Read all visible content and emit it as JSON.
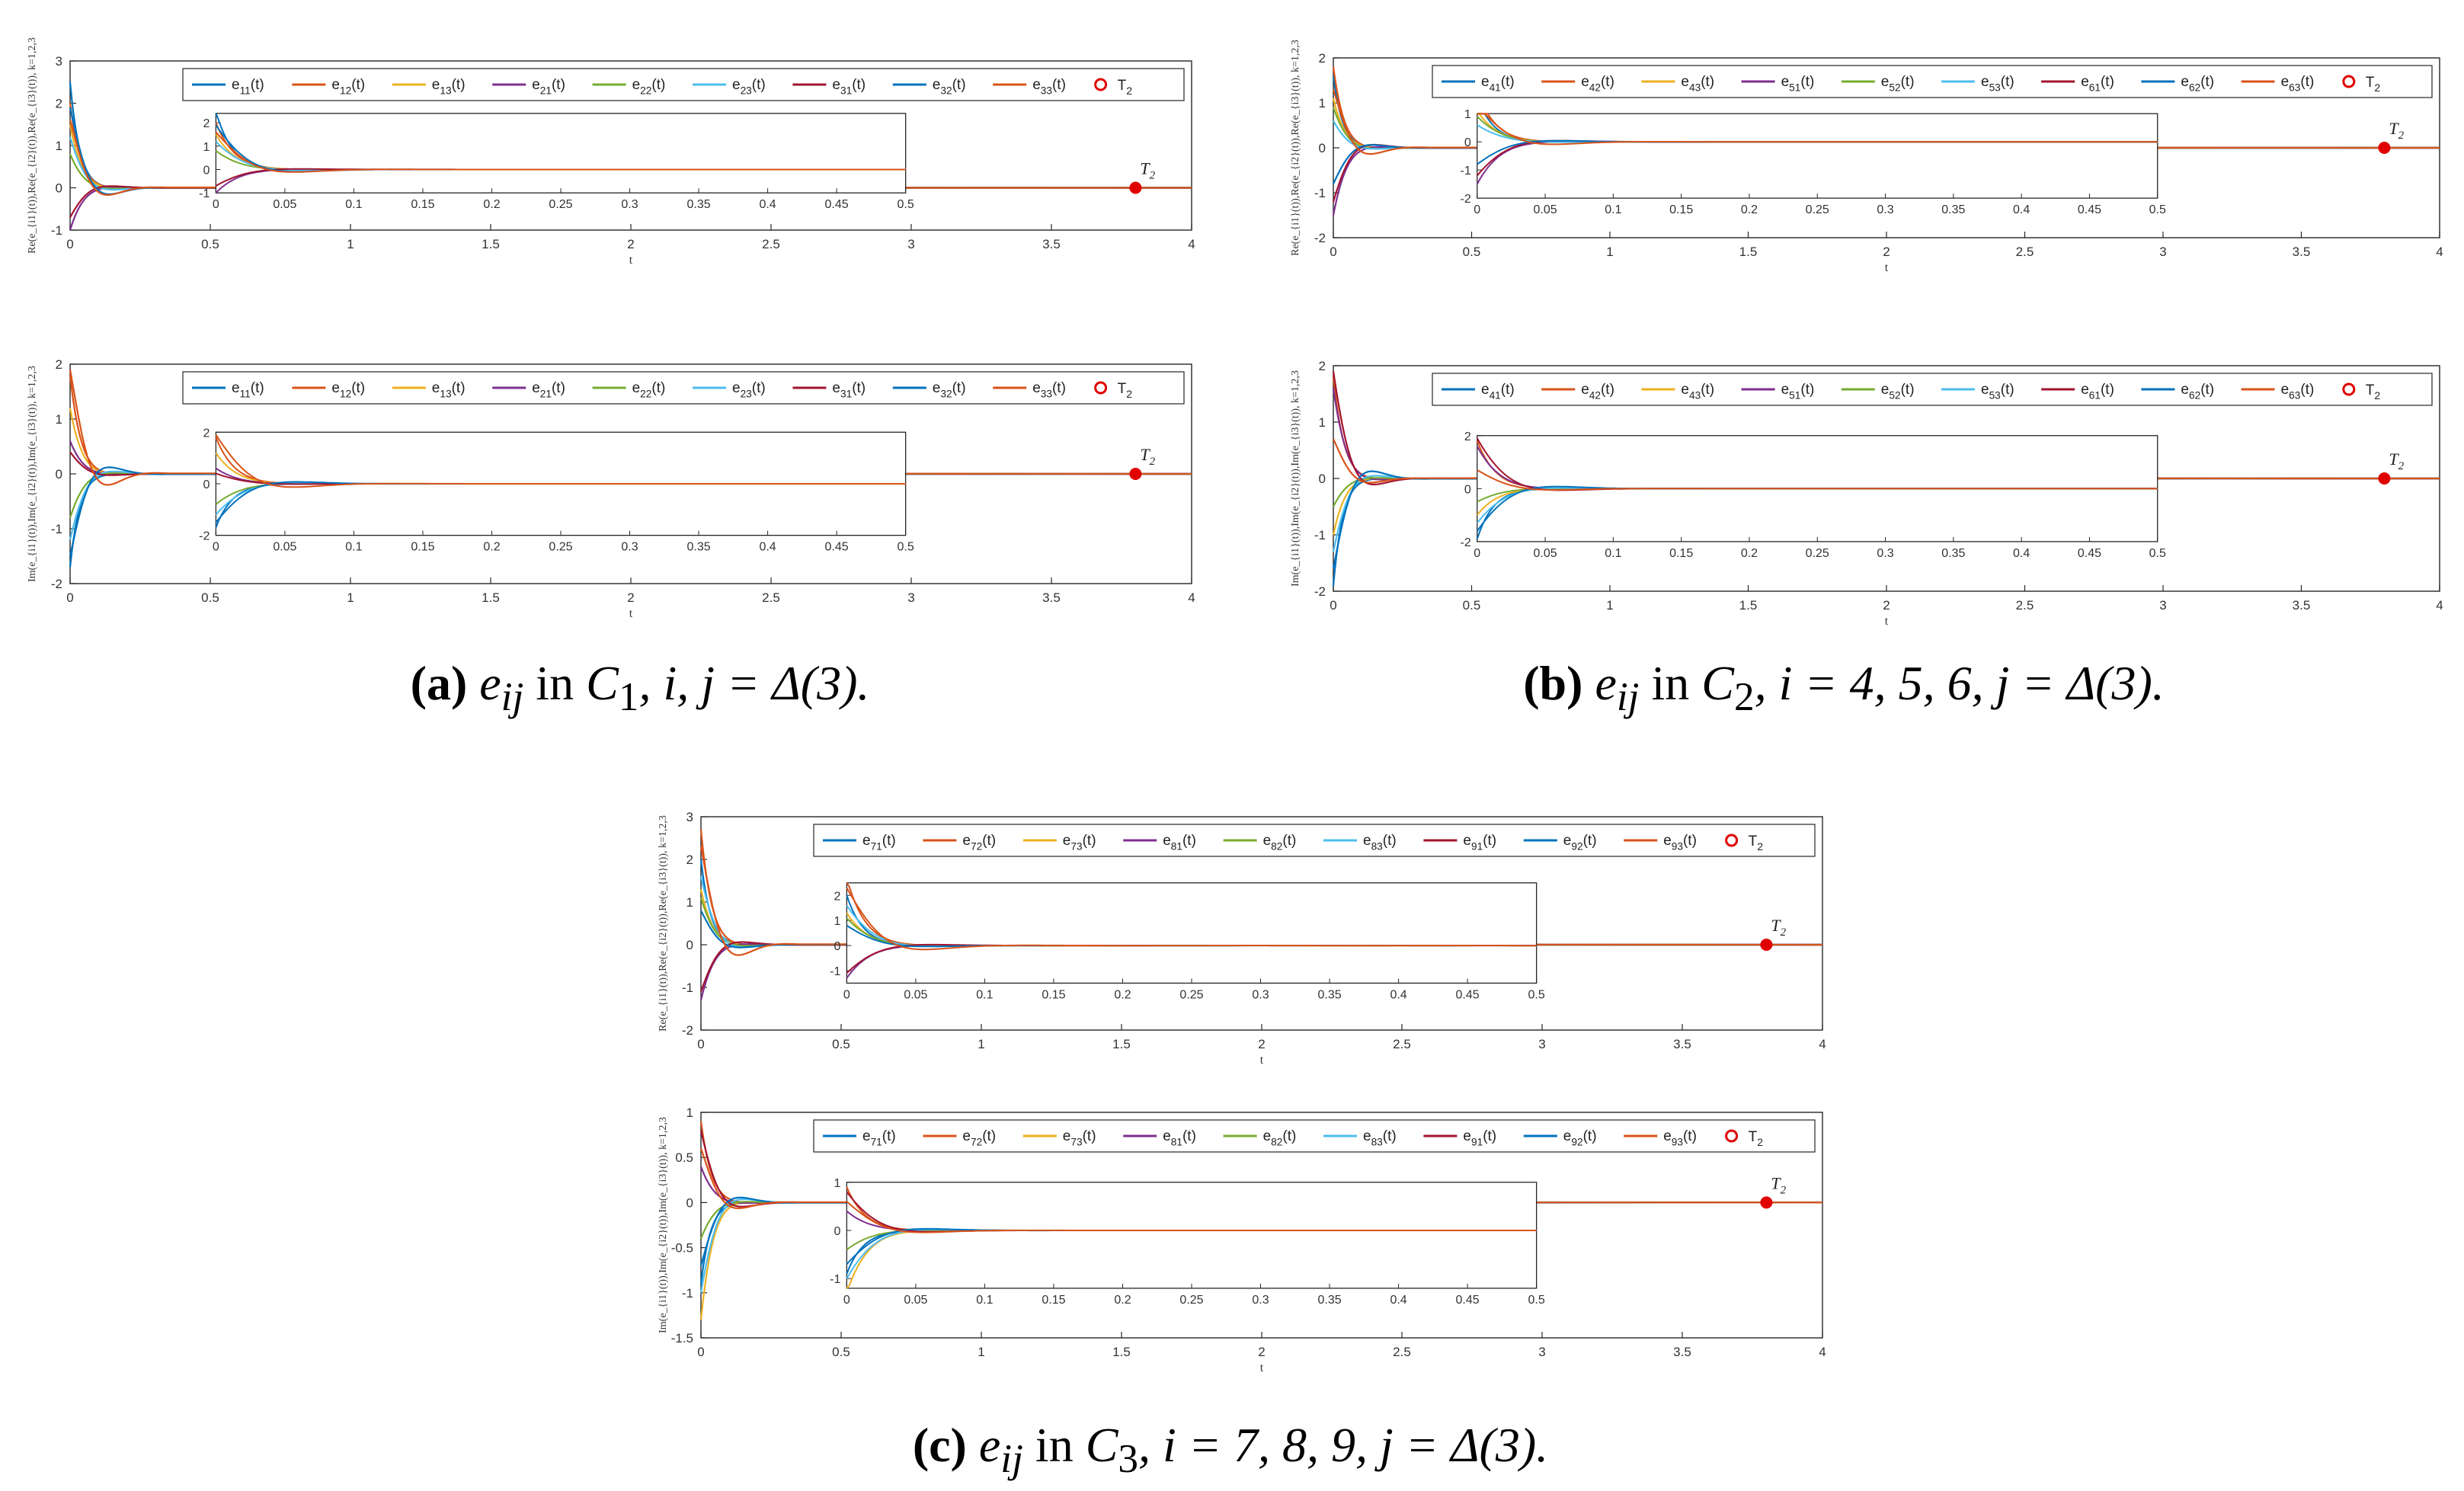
{
  "figure": {
    "colors": [
      "#0072BD",
      "#D95319",
      "#EDB120",
      "#7E2F8E",
      "#77AC30",
      "#4DBEEE",
      "#A2142F",
      "#0072BD",
      "#D95319"
    ],
    "marker_color": "#E00000",
    "marker_label": "T",
    "marker_sub": "2",
    "legend_marker_label": "T",
    "legend_marker_sub": "2",
    "xlabel": "t",
    "main_xticks": [
      "0",
      "0.5",
      "1",
      "1.5",
      "2",
      "2.5",
      "3",
      "3.5",
      "4"
    ],
    "inset_xticks": [
      "0",
      "0.05",
      "0.1",
      "0.15",
      "0.2",
      "0.25",
      "0.3",
      "0.35",
      "0.4",
      "0.45",
      "0.5"
    ]
  },
  "chart_data": [
    {
      "id": "a-top",
      "type": "line",
      "panel": "a",
      "row": "top",
      "ylabel": "Re(e_{i1}(t)),Re(e_{i2}(t)),Re(e_{i3}(t)), k=1,2,3",
      "ylim": [
        -1,
        3
      ],
      "yticks": [
        "-1",
        "0",
        "1",
        "2",
        "3"
      ],
      "inset_ylim": [
        -1,
        2.4
      ],
      "inset_yticks": [
        "-1",
        "0",
        "1",
        "2"
      ],
      "xlim": [
        0,
        4
      ],
      "marker_t": 3.8,
      "series": [
        {
          "name": "e11(t)",
          "sub": "11",
          "init": 2.5
        },
        {
          "name": "e12(t)",
          "sub": "12",
          "init": 2.0
        },
        {
          "name": "e13(t)",
          "sub": "13",
          "init": 1.5
        },
        {
          "name": "e21(t)",
          "sub": "21",
          "init": -1.0
        },
        {
          "name": "e22(t)",
          "sub": "22",
          "init": 0.8
        },
        {
          "name": "e23(t)",
          "sub": "23",
          "init": 1.2
        },
        {
          "name": "e31(t)",
          "sub": "31",
          "init": -0.7
        },
        {
          "name": "e32(t)",
          "sub": "32",
          "init": 1.9
        },
        {
          "name": "e33(t)",
          "sub": "33",
          "init": 1.6
        }
      ]
    },
    {
      "id": "a-bot",
      "type": "line",
      "panel": "a",
      "row": "bottom",
      "ylabel": "Im(e_{i1}(t)),Im(e_{i2}(t)),Im(e_{i3}(t)), k=1,2,3",
      "ylim": [
        -2,
        2
      ],
      "yticks": [
        "-2",
        "-1",
        "0",
        "1",
        "2"
      ],
      "inset_ylim": [
        -2,
        2
      ],
      "inset_yticks": [
        "-2",
        "0",
        "2"
      ],
      "xlim": [
        0,
        4
      ],
      "marker_t": 3.8,
      "series": [
        {
          "name": "e11(t)",
          "sub": "11",
          "init": -1.7
        },
        {
          "name": "e12(t)",
          "sub": "12",
          "init": 1.8
        },
        {
          "name": "e13(t)",
          "sub": "13",
          "init": 1.2
        },
        {
          "name": "e21(t)",
          "sub": "21",
          "init": 0.6
        },
        {
          "name": "e22(t)",
          "sub": "22",
          "init": -0.8
        },
        {
          "name": "e23(t)",
          "sub": "23",
          "init": -1.2
        },
        {
          "name": "e31(t)",
          "sub": "31",
          "init": 0.4
        },
        {
          "name": "e32(t)",
          "sub": "32",
          "init": -1.5
        },
        {
          "name": "e33(t)",
          "sub": "33",
          "init": 1.9
        }
      ]
    },
    {
      "id": "b-top",
      "type": "line",
      "panel": "b",
      "row": "top",
      "ylabel": "Re(e_{i1}(t)),Re(e_{i2}(t)),Re(e_{i3}(t)), k=1,2,3",
      "ylim": [
        -2,
        2
      ],
      "yticks": [
        "-2",
        "-1",
        "0",
        "1",
        "2"
      ],
      "inset_ylim": [
        -2,
        1
      ],
      "inset_yticks": [
        "-2",
        "-1",
        "0",
        "1"
      ],
      "xlim": [
        0,
        4
      ],
      "marker_t": 3.8,
      "series": [
        {
          "name": "e41(t)",
          "sub": "41",
          "init": 1.6
        },
        {
          "name": "e42(t)",
          "sub": "42",
          "init": 1.8
        },
        {
          "name": "e43(t)",
          "sub": "43",
          "init": 1.1
        },
        {
          "name": "e51(t)",
          "sub": "51",
          "init": -1.5
        },
        {
          "name": "e52(t)",
          "sub": "52",
          "init": 0.9
        },
        {
          "name": "e53(t)",
          "sub": "53",
          "init": 0.6
        },
        {
          "name": "e61(t)",
          "sub": "61",
          "init": -1.2
        },
        {
          "name": "e62(t)",
          "sub": "62",
          "init": -0.8
        },
        {
          "name": "e63(t)",
          "sub": "63",
          "init": 1.3
        }
      ]
    },
    {
      "id": "b-bot",
      "type": "line",
      "panel": "b",
      "row": "bottom",
      "ylabel": "Im(e_{i1}(t)),Im(e_{i2}(t)),Im(e_{i3}(t)), k=1,2,3",
      "ylim": [
        -2,
        2
      ],
      "yticks": [
        "-2",
        "-1",
        "0",
        "1",
        "2"
      ],
      "inset_ylim": [
        -2,
        2
      ],
      "inset_yticks": [
        "-2",
        "0",
        "2"
      ],
      "xlim": [
        0,
        4
      ],
      "marker_t": 3.8,
      "series": [
        {
          "name": "e41(t)",
          "sub": "41",
          "init": -1.9
        },
        {
          "name": "e42(t)",
          "sub": "42",
          "init": 1.8
        },
        {
          "name": "e43(t)",
          "sub": "43",
          "init": -1.0
        },
        {
          "name": "e51(t)",
          "sub": "51",
          "init": 1.6
        },
        {
          "name": "e52(t)",
          "sub": "52",
          "init": -0.5
        },
        {
          "name": "e53(t)",
          "sub": "53",
          "init": -1.3
        },
        {
          "name": "e61(t)",
          "sub": "61",
          "init": 1.9
        },
        {
          "name": "e62(t)",
          "sub": "62",
          "init": -1.6
        },
        {
          "name": "e63(t)",
          "sub": "63",
          "init": 0.7
        }
      ]
    },
    {
      "id": "c-top",
      "type": "line",
      "panel": "c",
      "row": "top",
      "ylabel": "Re(e_{i1}(t)),Re(e_{i2}(t)),Re(e_{i3}(t)), k=1,2,3",
      "ylim": [
        -2,
        3
      ],
      "yticks": [
        "-2",
        "-1",
        "0",
        "1",
        "2",
        "3"
      ],
      "inset_ylim": [
        -1.5,
        2.5
      ],
      "inset_yticks": [
        "-1",
        "0",
        "1",
        "2"
      ],
      "xlim": [
        0,
        4
      ],
      "marker_t": 3.8,
      "series": [
        {
          "name": "e71(t)",
          "sub": "71",
          "init": 2.0
        },
        {
          "name": "e72(t)",
          "sub": "72",
          "init": 2.7
        },
        {
          "name": "e73(t)",
          "sub": "73",
          "init": 1.3
        },
        {
          "name": "e81(t)",
          "sub": "81",
          "init": -1.3
        },
        {
          "name": "e82(t)",
          "sub": "82",
          "init": 1.1
        },
        {
          "name": "e83(t)",
          "sub": "83",
          "init": 1.6
        },
        {
          "name": "e91(t)",
          "sub": "91",
          "init": -1.1
        },
        {
          "name": "e92(t)",
          "sub": "92",
          "init": 0.8
        },
        {
          "name": "e93(t)",
          "sub": "93",
          "init": 2.3
        }
      ]
    },
    {
      "id": "c-bot",
      "type": "line",
      "panel": "c",
      "row": "bottom",
      "ylabel": "Im(e_{i1}(t)),Im(e_{i2}(t)),Im(e_{i3}(t)), k=1,2,3",
      "ylim": [
        -1.5,
        1
      ],
      "yticks": [
        "-1.5",
        "-1",
        "-0.5",
        "0",
        "0.5",
        "1"
      ],
      "inset_ylim": [
        -1.2,
        1
      ],
      "inset_yticks": [
        "-1",
        "0",
        "1"
      ],
      "xlim": [
        0,
        4
      ],
      "marker_t": 3.8,
      "series": [
        {
          "name": "e71(t)",
          "sub": "71",
          "init": -0.9
        },
        {
          "name": "e72(t)",
          "sub": "72",
          "init": 0.9
        },
        {
          "name": "e73(t)",
          "sub": "73",
          "init": -1.3
        },
        {
          "name": "e81(t)",
          "sub": "81",
          "init": 0.4
        },
        {
          "name": "e82(t)",
          "sub": "82",
          "init": -0.4
        },
        {
          "name": "e83(t)",
          "sub": "83",
          "init": -1.0
        },
        {
          "name": "e91(t)",
          "sub": "91",
          "init": 0.8
        },
        {
          "name": "e92(t)",
          "sub": "92",
          "init": -0.7
        },
        {
          "name": "e93(t)",
          "sub": "93",
          "init": 0.6
        }
      ]
    }
  ],
  "captions": {
    "a": {
      "label": "(a)",
      "sym": "e",
      "sub": "ij",
      "in": "in",
      "set": "C",
      "setsub": "1",
      "tail": ", i, j = Δ(3)."
    },
    "b": {
      "label": "(b)",
      "sym": "e",
      "sub": "ij",
      "in": "in",
      "set": "C",
      "setsub": "2",
      "tail": ", i = 4, 5, 6, j = Δ(3)."
    },
    "c": {
      "label": "(c)",
      "sym": "e",
      "sub": "ij",
      "in": "in",
      "set": "C",
      "setsub": "3",
      "tail": ", i = 7, 8, 9, j = Δ(3)."
    }
  }
}
